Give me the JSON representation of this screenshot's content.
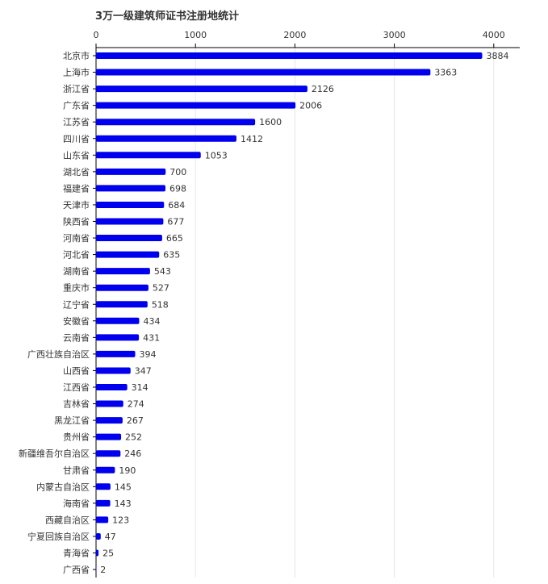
{
  "chart_data": {
    "type": "bar",
    "orientation": "horizontal",
    "title": "3万一级建筑师证书注册地统计",
    "xlim": [
      0,
      4200
    ],
    "x_ticks": [
      0,
      1000,
      2000,
      3000,
      4000
    ],
    "x_tick_labels": [
      "0",
      "1000",
      "2000",
      "3000",
      "4000"
    ],
    "x_axis_position": "top",
    "grid": true,
    "bar_color": "#0000ee",
    "categories": [
      "北京市",
      "上海市",
      "浙江省",
      "广东省",
      "江苏省",
      "四川省",
      "山东省",
      "湖北省",
      "福建省",
      "天津市",
      "陕西省",
      "河南省",
      "河北省",
      "湖南省",
      "重庆市",
      "辽宁省",
      "安徽省",
      "云南省",
      "广西壮族自治区",
      "山西省",
      "江西省",
      "吉林省",
      "黑龙江省",
      "贵州省",
      "新疆维吾尔自治区",
      "甘肃省",
      "内蒙古自治区",
      "海南省",
      "西藏自治区",
      "宁夏回族自治区",
      "青海省",
      "广西省"
    ],
    "values": [
      3884,
      3363,
      2126,
      2006,
      1600,
      1412,
      1053,
      700,
      698,
      684,
      677,
      665,
      635,
      543,
      527,
      518,
      434,
      431,
      394,
      347,
      314,
      274,
      267,
      252,
      246,
      190,
      145,
      143,
      123,
      47,
      25,
      2
    ],
    "value_labels": [
      "3884",
      "3363",
      "2126",
      "2006",
      "1600",
      "1412",
      "1053",
      "700",
      "698",
      "684",
      "677",
      "665",
      "635",
      "543",
      "527",
      "518",
      "434",
      "431",
      "394",
      "347",
      "314",
      "274",
      "267",
      "252",
      "246",
      "190",
      "145",
      "143",
      "123",
      "47",
      "25",
      "2"
    ]
  }
}
